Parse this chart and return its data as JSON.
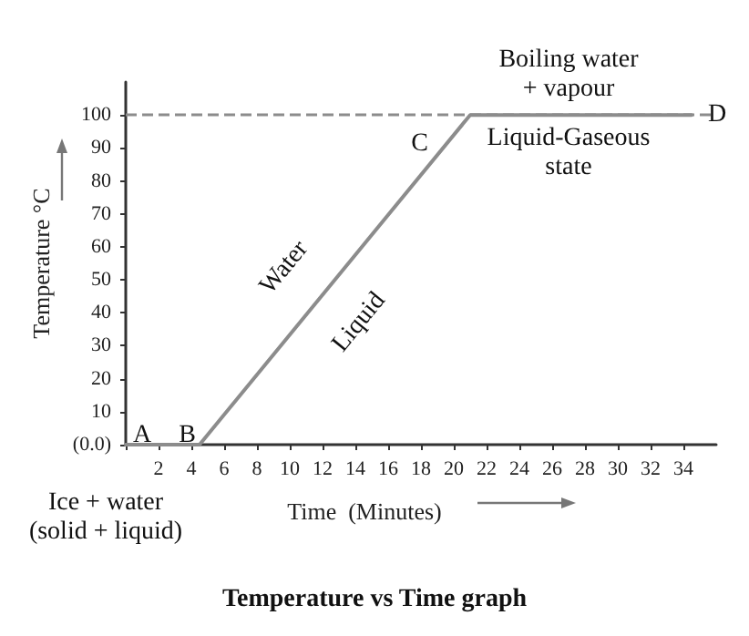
{
  "chart_data": {
    "type": "line",
    "title": "Temperature vs Time graph",
    "xlabel": "Time  (Minutes)",
    "ylabel": "Temperature °C",
    "x": [
      0,
      4.5,
      21,
      34.5
    ],
    "series": [
      {
        "color": "#8c8c8c",
        "values": [
          0,
          0,
          100,
          100
        ]
      }
    ],
    "xlim": [
      0,
      36
    ],
    "xticks": [
      {
        "value": 0,
        "label": null
      },
      2,
      4,
      6,
      8,
      10,
      12,
      14,
      16,
      18,
      20,
      22,
      24,
      26,
      28,
      30,
      32,
      34
    ],
    "ylim": [
      0,
      110
    ],
    "yticks": [
      {
        "value": 0,
        "label": "(0.0)"
      },
      10,
      20,
      30,
      40,
      50,
      60,
      70,
      80,
      90,
      100
    ],
    "ref_lines": [
      {
        "axis": "y",
        "value": 100,
        "line_style": "dashed",
        "color": "#8c8c8c"
      }
    ],
    "marker": "none",
    "line_style": "solid",
    "grid": false,
    "annotations": [
      {
        "text": "A",
        "x": 0,
        "y": 0
      },
      {
        "text": "B",
        "x": 4.5,
        "y": 0
      },
      {
        "text": "C",
        "x": 21,
        "y": 100
      },
      {
        "text": "D",
        "x": 34.5,
        "y": 100
      },
      "Boiling water\n+ vapour",
      "Liquid-Gaseous\nstate",
      "Water",
      "Liquid",
      "Ice + water\n(solid + liquid)"
    ]
  }
}
